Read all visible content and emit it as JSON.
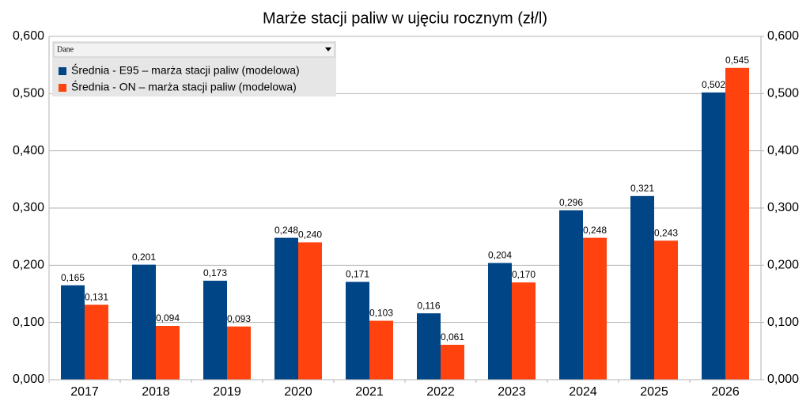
{
  "chart_data": {
    "type": "bar",
    "title": "Marże stacji paliw w ujęciu rocznym (zł/l)",
    "legend_title": "Dane",
    "legend_position": "top-left",
    "grid": true,
    "categories": [
      "2017",
      "2018",
      "2019",
      "2020",
      "2021",
      "2022",
      "2023",
      "2024",
      "2025",
      "2026"
    ],
    "series": [
      {
        "name": "Średnia - E95 – marża stacji paliw (modelowa)",
        "color": "#004586",
        "values": [
          0.165,
          0.201,
          0.173,
          0.248,
          0.171,
          0.116,
          0.204,
          0.296,
          0.321,
          0.502
        ],
        "value_labels": [
          "0,165",
          "0,201",
          "0,173",
          "0,248",
          "0,171",
          "0,116",
          "0,204",
          "0,296",
          "0,321",
          "0,502"
        ]
      },
      {
        "name": "Średnia - ON – marża stacji paliw (modelowa)",
        "color": "#ff420e",
        "values": [
          0.131,
          0.094,
          0.093,
          0.24,
          0.103,
          0.061,
          0.17,
          0.248,
          0.243,
          0.545
        ],
        "value_labels": [
          "0,131",
          "0,094",
          "0,093",
          "0,240",
          "0,103",
          "0,061",
          "0,170",
          "0,248",
          "0,243",
          "0,545"
        ]
      }
    ],
    "ylim": [
      0,
      0.6
    ],
    "yticks": [
      {
        "value": 0,
        "label": "0,000"
      },
      {
        "value": 0.1,
        "label": "0,100"
      },
      {
        "value": 0.2,
        "label": "0,200"
      },
      {
        "value": 0.3,
        "label": "0,300"
      },
      {
        "value": 0.4,
        "label": "0,400"
      },
      {
        "value": 0.5,
        "label": "0,500"
      },
      {
        "value": 0.6,
        "label": "0,600"
      }
    ],
    "y2lim": [
      0,
      0.6
    ],
    "y2ticks": [
      {
        "value": 0,
        "label": "0,000"
      },
      {
        "value": 0.1,
        "label": "0,100"
      },
      {
        "value": 0.2,
        "label": "0,200"
      },
      {
        "value": 0.3,
        "label": "0,300"
      },
      {
        "value": 0.4,
        "label": "0,400"
      },
      {
        "value": 0.5,
        "label": "0,500"
      },
      {
        "value": 0.6,
        "label": "0,600"
      }
    ]
  }
}
